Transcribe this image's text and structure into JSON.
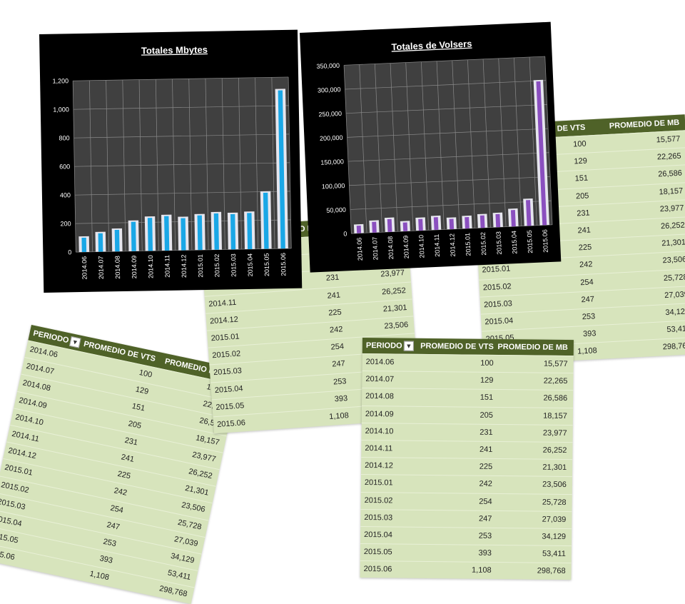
{
  "colors": {
    "chart_bg": "#000000",
    "plot_bg": "#404040",
    "mbytes_bar": "#1aa7e6",
    "volsers_bar": "#8a4fbf",
    "table_header": "#4f6228",
    "table_body": "#d7e4bc"
  },
  "chart_data": [
    {
      "type": "bar",
      "title": "Totales Mbytes",
      "categories": [
        "2014.06",
        "2014.07",
        "2014.08",
        "2014.09",
        "2014.10",
        "2014.11",
        "2014.12",
        "2015.01",
        "2015.02",
        "2015.03",
        "2015.04",
        "2015.05",
        "2015.06"
      ],
      "values": [
        100,
        129,
        151,
        205,
        231,
        241,
        225,
        242,
        254,
        247,
        253,
        393,
        1108
      ],
      "ylim": [
        0,
        1200
      ],
      "yticks": [
        "0",
        "200",
        "400",
        "600",
        "800",
        "1,000",
        "1,200"
      ],
      "grid": true
    },
    {
      "type": "bar",
      "title": "Totales de Volsers",
      "categories": [
        "2014.06",
        "2014.07",
        "2014.08",
        "2014.09",
        "2014.10",
        "2014.11",
        "2014.12",
        "2015.01",
        "2015.02",
        "2015.03",
        "2015.04",
        "2015.05",
        "2015.06"
      ],
      "values": [
        15577,
        22265,
        26586,
        18157,
        23977,
        26252,
        21301,
        23506,
        25728,
        27039,
        34129,
        53411,
        298768
      ],
      "ylim": [
        0,
        350000
      ],
      "yticks": [
        "0",
        "50,000",
        "100,000",
        "150,000",
        "200,000",
        "250,000",
        "300,000",
        "350,000"
      ],
      "grid": true
    }
  ],
  "table": {
    "headers": [
      "PERIODO",
      "PROMEDIO DE VTS",
      "PROMEDIO DE MB"
    ],
    "filter_icon": "filter-dropdown-icon",
    "rows": [
      [
        "2014.06",
        "100",
        "15,577"
      ],
      [
        "2014.07",
        "129",
        "22,265"
      ],
      [
        "2014.08",
        "151",
        "26,586"
      ],
      [
        "2014.09",
        "205",
        "18,157"
      ],
      [
        "2014.10",
        "231",
        "23,977"
      ],
      [
        "2014.11",
        "241",
        "26,252"
      ],
      [
        "2014.12",
        "225",
        "21,301"
      ],
      [
        "2015.01",
        "242",
        "23,506"
      ],
      [
        "2015.02",
        "254",
        "25,728"
      ],
      [
        "2015.03",
        "247",
        "27,039"
      ],
      [
        "2015.04",
        "253",
        "34,129"
      ],
      [
        "2015.05",
        "393",
        "53,411"
      ],
      [
        "2015.06",
        "1,108",
        "298,768"
      ]
    ]
  }
}
